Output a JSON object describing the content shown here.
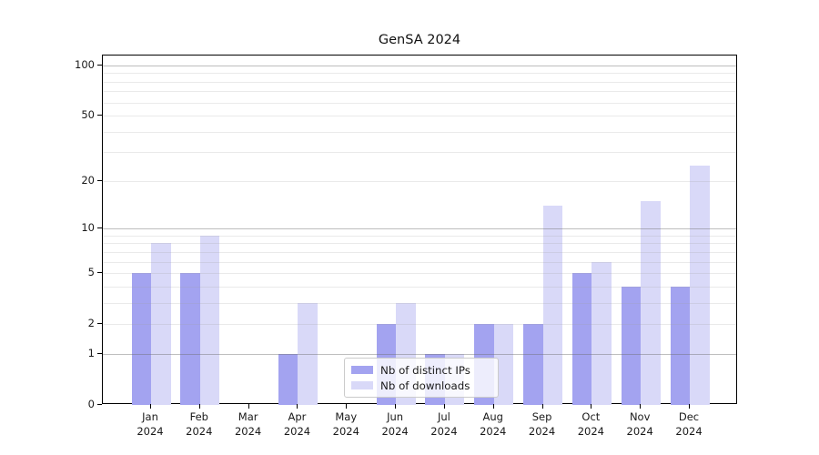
{
  "chart_data": {
    "type": "bar",
    "title": "GenSA 2024",
    "categories": [
      "Jan",
      "Feb",
      "Mar",
      "Apr",
      "May",
      "Jun",
      "Jul",
      "Aug",
      "Sep",
      "Oct",
      "Nov",
      "Dec"
    ],
    "category_year": "2024",
    "series": [
      {
        "name": "Nb of distinct IPs",
        "color": "#a3a3f0",
        "values": [
          5,
          5,
          0,
          1,
          0,
          2,
          1,
          2,
          2,
          5,
          4,
          4
        ]
      },
      {
        "name": "Nb of downloads",
        "color": "#d9d9f8",
        "values": [
          8,
          9,
          0,
          3,
          0,
          3,
          1,
          2,
          14,
          6,
          15,
          25
        ]
      }
    ],
    "xlabel": "",
    "ylabel": "",
    "y_scale": "log10(1+value)",
    "y_ticks": [
      0,
      1,
      2,
      5,
      10,
      20,
      50,
      100
    ],
    "major_gridlines": [
      1,
      10,
      100
    ],
    "minor_gridlines": [
      2,
      3,
      4,
      5,
      6,
      7,
      8,
      9,
      20,
      30,
      40,
      50,
      60,
      70,
      80,
      90
    ],
    "ylim": [
      0,
      115
    ],
    "grid": "on",
    "legend_position": "lower-center",
    "axis_color": "#000000",
    "background_color": "#ffffff"
  }
}
